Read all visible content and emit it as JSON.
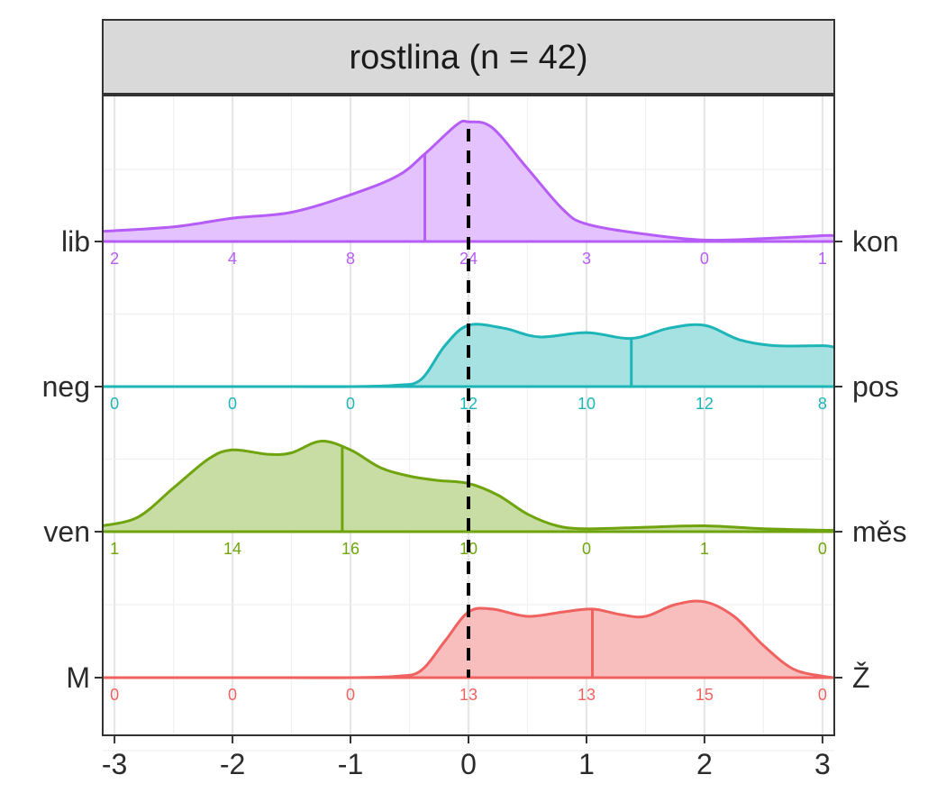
{
  "chart_data": {
    "type": "ridgeline",
    "title": "rostlina (n = 42)",
    "xlim": [
      -3.1,
      3.1
    ],
    "x_ticks": [
      -3,
      -2,
      -1,
      0,
      1,
      2,
      3
    ],
    "x_tick_labels": [
      "-3",
      "-2",
      "-1",
      "0",
      "1",
      "2",
      "3"
    ],
    "reference_line_x": 0,
    "grid": true,
    "count_positions": [
      -3,
      -2,
      -1,
      0,
      1,
      2,
      3
    ],
    "rows": [
      {
        "left_label": "M",
        "right_label": "Ž",
        "color": "#F0625F",
        "fill": "#F8BBB9",
        "mean": 1.05,
        "counts": [
          "0",
          "0",
          "0",
          "13",
          "13",
          "15",
          "0"
        ],
        "density_x": [
          -3.1,
          -2.5,
          -2.0,
          -1.5,
          -1.0,
          -0.6,
          -0.4,
          -0.2,
          0.0,
          0.2,
          0.5,
          0.8,
          1.05,
          1.3,
          1.5,
          1.75,
          2.0,
          2.25,
          2.5,
          2.75,
          3.0,
          3.1
        ],
        "density_y": [
          0,
          0,
          0,
          0,
          0,
          0.01,
          0.05,
          0.25,
          0.45,
          0.47,
          0.42,
          0.45,
          0.47,
          0.43,
          0.42,
          0.5,
          0.52,
          0.42,
          0.22,
          0.06,
          0.01,
          0
        ]
      },
      {
        "left_label": "ven",
        "right_label": "měs",
        "color": "#6FA40E",
        "fill": "#C5DB9E",
        "mean": -1.07,
        "counts": [
          "1",
          "14",
          "16",
          "10",
          "0",
          "1",
          "0"
        ],
        "density_x": [
          -3.1,
          -2.8,
          -2.5,
          -2.2,
          -2.0,
          -1.7,
          -1.5,
          -1.25,
          -1.0,
          -0.75,
          -0.5,
          -0.25,
          0.0,
          0.25,
          0.5,
          0.75,
          1.0,
          1.5,
          2.0,
          2.5,
          3.0,
          3.1
        ],
        "density_y": [
          0.04,
          0.1,
          0.3,
          0.5,
          0.56,
          0.53,
          0.54,
          0.62,
          0.56,
          0.44,
          0.38,
          0.35,
          0.33,
          0.25,
          0.12,
          0.04,
          0.02,
          0.03,
          0.04,
          0.02,
          0.01,
          0.01
        ]
      },
      {
        "left_label": "neg",
        "right_label": "pos",
        "color": "#1DB5B8",
        "fill": "#A2E0E0",
        "mean": 1.38,
        "counts": [
          "0",
          "0",
          "0",
          "12",
          "10",
          "12",
          "8"
        ],
        "density_x": [
          -3.1,
          -2.5,
          -2.0,
          -1.5,
          -1.0,
          -0.6,
          -0.4,
          -0.2,
          0.0,
          0.3,
          0.6,
          1.0,
          1.38,
          1.7,
          2.0,
          2.3,
          2.6,
          3.0,
          3.1
        ],
        "density_y": [
          0,
          0,
          0,
          0,
          0,
          0.01,
          0.05,
          0.28,
          0.42,
          0.4,
          0.34,
          0.37,
          0.33,
          0.4,
          0.42,
          0.32,
          0.28,
          0.28,
          0.27
        ]
      },
      {
        "left_label": "lib",
        "right_label": "kon",
        "color": "#B65CF7",
        "fill": "#E3BFFD",
        "mean": -0.37,
        "counts": [
          "2",
          "4",
          "8",
          "24",
          "3",
          "0",
          "1"
        ],
        "density_x": [
          -3.1,
          -2.5,
          -2.0,
          -1.5,
          -1.0,
          -0.6,
          -0.37,
          -0.1,
          0.0,
          0.2,
          0.5,
          0.8,
          1.0,
          1.5,
          2.0,
          2.5,
          3.0,
          3.1
        ],
        "density_y": [
          0.07,
          0.1,
          0.16,
          0.2,
          0.32,
          0.45,
          0.6,
          0.8,
          0.82,
          0.78,
          0.5,
          0.22,
          0.12,
          0.05,
          0.01,
          0.02,
          0.04,
          0.04
        ]
      }
    ]
  }
}
